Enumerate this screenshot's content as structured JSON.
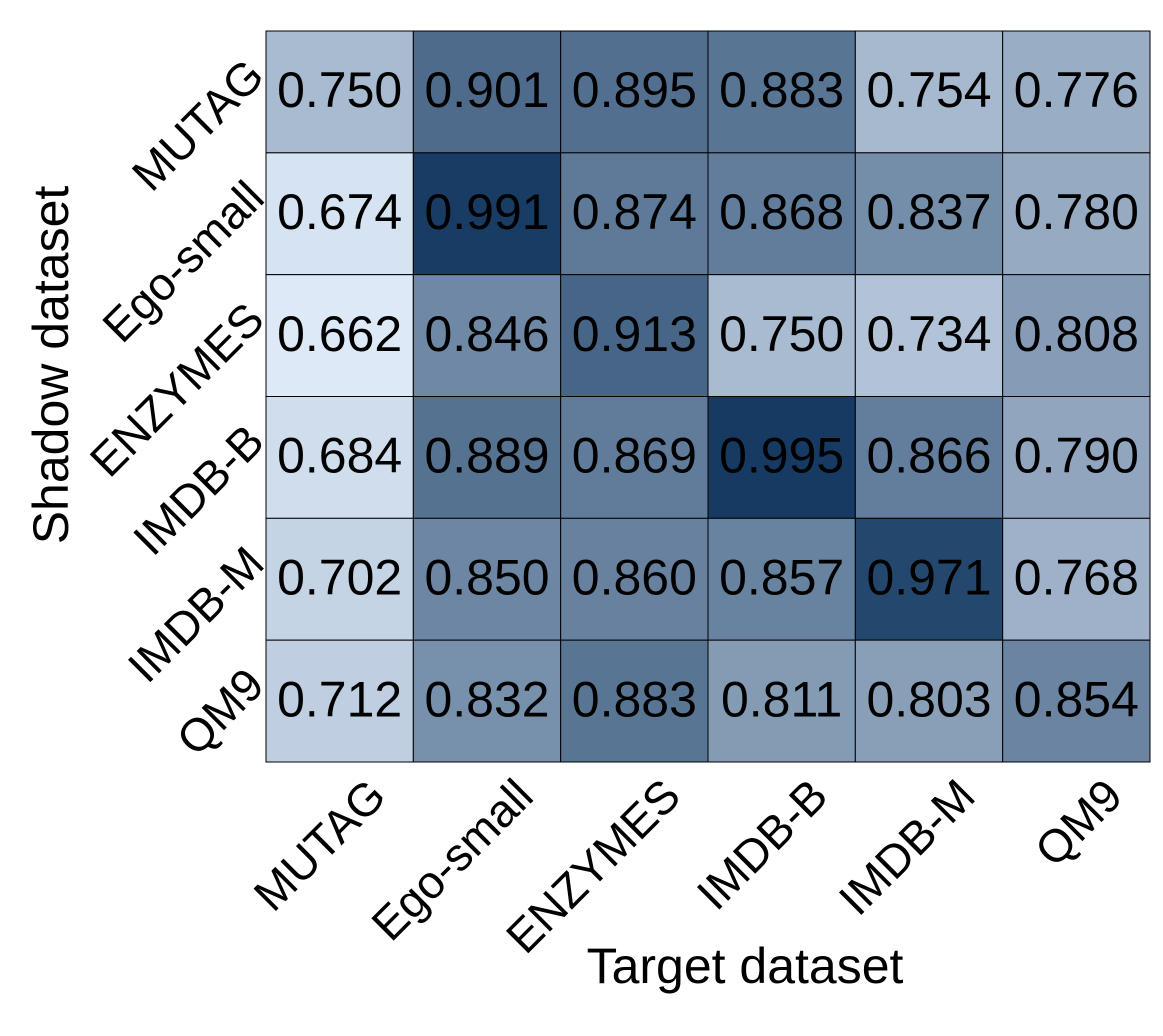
{
  "chart_data": {
    "type": "heatmap",
    "x_label": "Target dataset",
    "y_label": "Shadow dataset",
    "columns": [
      "MUTAG",
      "Ego-small",
      "ENZYMES",
      "IMDB-B",
      "IMDB-M",
      "QM9"
    ],
    "rows": [
      "MUTAG",
      "Ego-small",
      "ENZYMES",
      "IMDB-B",
      "IMDB-M",
      "QM9"
    ],
    "values": [
      [
        0.75,
        0.901,
        0.895,
        0.883,
        0.754,
        0.776
      ],
      [
        0.674,
        0.991,
        0.874,
        0.868,
        0.837,
        0.78
      ],
      [
        0.662,
        0.846,
        0.913,
        0.75,
        0.734,
        0.808
      ],
      [
        0.684,
        0.889,
        0.869,
        0.995,
        0.866,
        0.79
      ],
      [
        0.702,
        0.85,
        0.86,
        0.857,
        0.971,
        0.768
      ],
      [
        0.712,
        0.832,
        0.883,
        0.811,
        0.803,
        0.854
      ]
    ],
    "value_labels": [
      [
        "0.750",
        "0.901",
        "0.895",
        "0.883",
        "0.754",
        "0.776"
      ],
      [
        "0.674",
        "0.991",
        "0.874",
        "0.868",
        "0.837",
        "0.780"
      ],
      [
        "0.662",
        "0.846",
        "0.913",
        "0.750",
        "0.734",
        "0.808"
      ],
      [
        "0.684",
        "0.889",
        "0.869",
        "0.995",
        "0.866",
        "0.790"
      ],
      [
        "0.702",
        "0.850",
        "0.860",
        "0.857",
        "0.971",
        "0.768"
      ],
      [
        "0.712",
        "0.832",
        "0.883",
        "0.811",
        "0.803",
        "0.854"
      ]
    ],
    "colors": [
      "#dde9f7",
      "#163a62"
    ]
  }
}
